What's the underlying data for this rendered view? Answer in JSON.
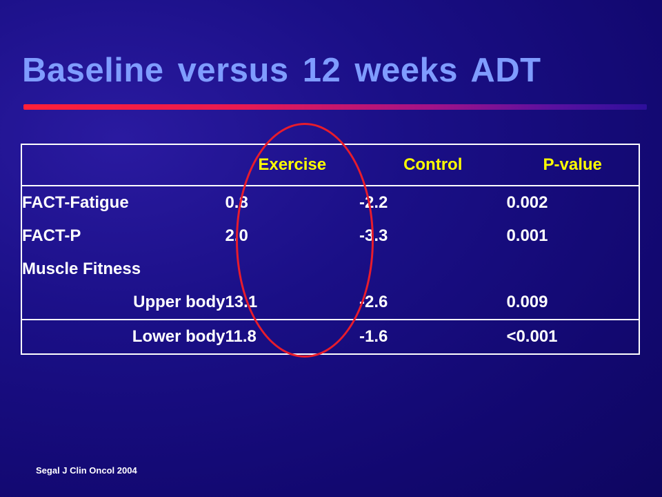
{
  "slide": {
    "title": "Baseline versus 12 weeks ADT",
    "citation": "Segal J Clin Oncol 2004"
  },
  "colors": {
    "background": "#1a0f86",
    "title": "#7f9cff",
    "header_text": "#ffff00",
    "body_text": "#ffffff",
    "highlight_ellipse": "#e81c2c"
  },
  "table": {
    "headers": [
      "",
      "Exercise",
      "Control",
      "P-value"
    ],
    "rows": [
      {
        "label": "FACT-Fatigue",
        "exercise": "0.8",
        "control": "-2.2",
        "p_value": "0.002"
      },
      {
        "label": "FACT-P",
        "exercise": "2.0",
        "control": "-3.3",
        "p_value": "0.001"
      },
      {
        "label": "Muscle Fitness",
        "exercise": "",
        "control": "",
        "p_value": ""
      },
      {
        "label": "Upper body",
        "exercise": "13.1",
        "control": "-2.6",
        "p_value": "0.009"
      },
      {
        "label": "Lower body",
        "exercise": "11.8",
        "control": "-1.6",
        "p_value": "<0.001"
      }
    ]
  }
}
